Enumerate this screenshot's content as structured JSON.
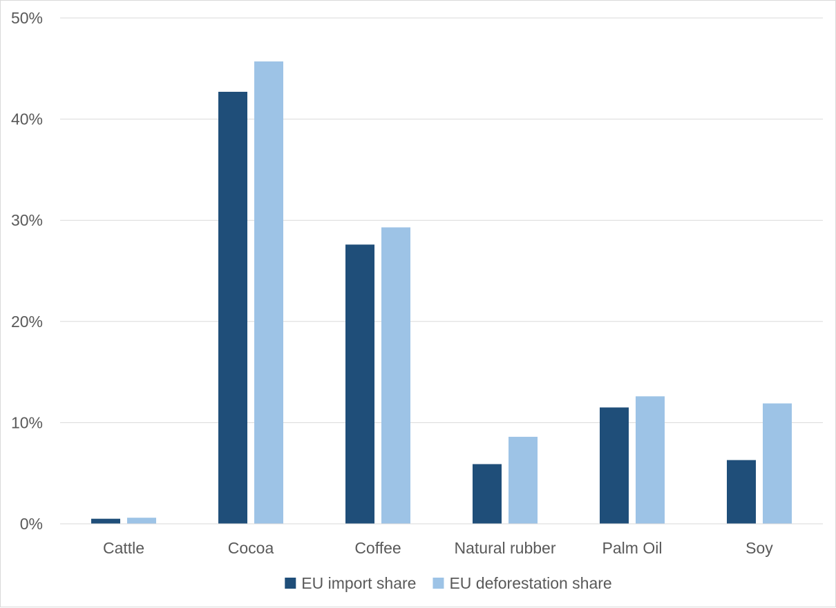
{
  "chart_data": {
    "type": "bar",
    "categories": [
      "Cattle",
      "Cocoa",
      "Coffee",
      "Natural rubber",
      "Palm Oil",
      "Soy"
    ],
    "series": [
      {
        "name": "EU import share",
        "color": "#1f4e79",
        "values": [
          0.5,
          42.7,
          27.6,
          5.9,
          11.5,
          6.3
        ]
      },
      {
        "name": "EU deforestation share",
        "color": "#9dc3e6",
        "values": [
          0.6,
          45.7,
          29.3,
          8.6,
          12.6,
          11.9
        ]
      }
    ],
    "ylim": [
      0,
      50
    ],
    "yticks": [
      0,
      10,
      20,
      30,
      40,
      50
    ],
    "ytick_labels": [
      "0%",
      "10%",
      "20%",
      "30%",
      "40%",
      "50%"
    ],
    "grid": true,
    "legend_position": "bottom",
    "title": "",
    "xlabel": "",
    "ylabel": ""
  }
}
